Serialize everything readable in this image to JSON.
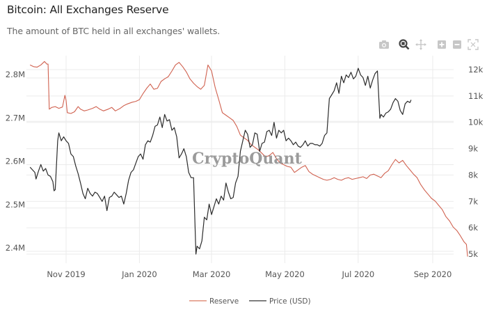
{
  "header": {
    "title": "Bitcoin: All Exchanges Reserve",
    "subtitle": "The amount of BTC held in all exchanges' wallets."
  },
  "toolbar": {
    "icons": [
      "camera-icon",
      "zoom-icon",
      "pan-icon",
      "zoom-in-icon",
      "zoom-out-icon",
      "autoscale-icon"
    ]
  },
  "watermark": "CryptoQuant",
  "colors": {
    "reserve": "#d0614f",
    "price": "#2b2b2b",
    "grid": "#ebebeb",
    "reserve_legend": "#e0907c",
    "price_legend": "#555555"
  },
  "chart_data": {
    "type": "line",
    "title": "Bitcoin: All Exchanges Reserve",
    "subtitle": "The amount of BTC held in all exchanges' wallets.",
    "x_unit": "days since 2019-10-01",
    "xlim": [
      1,
      365
    ],
    "x_ticks": [
      {
        "label": "Nov 2019",
        "day": 31
      },
      {
        "label": "Jan 2020",
        "day": 92
      },
      {
        "label": "Mar 2020",
        "day": 152
      },
      {
        "label": "May 2020",
        "day": 213
      },
      {
        "label": "Jul 2020",
        "day": 274
      },
      {
        "label": "Sep 2020",
        "day": 336
      }
    ],
    "y_left": {
      "label": "Reserve",
      "range": [
        2.37,
        2.87
      ],
      "ticks": [
        {
          "label": "2.4M",
          "value": 2.4
        },
        {
          "label": "2.5M",
          "value": 2.5
        },
        {
          "label": "2.6M",
          "value": 2.6
        },
        {
          "label": "2.7M",
          "value": 2.7
        },
        {
          "label": "2.8M",
          "value": 2.8
        }
      ]
    },
    "y_right": {
      "label": "Price (USD)",
      "range": [
        4800,
        12400
      ],
      "ticks": [
        {
          "label": "5k",
          "value": 5000
        },
        {
          "label": "6k",
          "value": 6000
        },
        {
          "label": "7k",
          "value": 7000
        },
        {
          "label": "8k",
          "value": 8000
        },
        {
          "label": "9k",
          "value": 9000
        },
        {
          "label": "10k",
          "value": 10000
        },
        {
          "label": "11k",
          "value": 11000
        },
        {
          "label": "12k",
          "value": 12000
        }
      ]
    },
    "legend": {
      "position": "bottom-center",
      "entries": [
        "Reserve",
        "Price (USD)"
      ]
    },
    "grid": true,
    "series": [
      {
        "name": "Reserve",
        "axis": "left",
        "unit": "M BTC",
        "points": [
          [
            1,
            2.822
          ],
          [
            4,
            2.818
          ],
          [
            7,
            2.817
          ],
          [
            10,
            2.822
          ],
          [
            13,
            2.83
          ],
          [
            15,
            2.824
          ],
          [
            16,
            2.824
          ],
          [
            17,
            2.72
          ],
          [
            19,
            2.724
          ],
          [
            22,
            2.726
          ],
          [
            25,
            2.722
          ],
          [
            28,
            2.725
          ],
          [
            30,
            2.752
          ],
          [
            31,
            2.74
          ],
          [
            32,
            2.712
          ],
          [
            35,
            2.71
          ],
          [
            38,
            2.714
          ],
          [
            41,
            2.726
          ],
          [
            43,
            2.72
          ],
          [
            46,
            2.716
          ],
          [
            49,
            2.718
          ],
          [
            53,
            2.722
          ],
          [
            56,
            2.726
          ],
          [
            59,
            2.72
          ],
          [
            62,
            2.716
          ],
          [
            66,
            2.72
          ],
          [
            69,
            2.724
          ],
          [
            72,
            2.716
          ],
          [
            76,
            2.722
          ],
          [
            79,
            2.728
          ],
          [
            82,
            2.732
          ],
          [
            86,
            2.736
          ],
          [
            89,
            2.738
          ],
          [
            92,
            2.742
          ],
          [
            95,
            2.756
          ],
          [
            98,
            2.768
          ],
          [
            101,
            2.778
          ],
          [
            104,
            2.766
          ],
          [
            107,
            2.768
          ],
          [
            110,
            2.784
          ],
          [
            113,
            2.79
          ],
          [
            116,
            2.795
          ],
          [
            119,
            2.808
          ],
          [
            122,
            2.822
          ],
          [
            125,
            2.828
          ],
          [
            128,
            2.818
          ],
          [
            131,
            2.806
          ],
          [
            134,
            2.79
          ],
          [
            137,
            2.78
          ],
          [
            140,
            2.772
          ],
          [
            143,
            2.766
          ],
          [
            146,
            2.775
          ],
          [
            149,
            2.822
          ],
          [
            152,
            2.808
          ],
          [
            155,
            2.77
          ],
          [
            158,
            2.742
          ],
          [
            161,
            2.712
          ],
          [
            164,
            2.706
          ],
          [
            167,
            2.7
          ],
          [
            170,
            2.694
          ],
          [
            173,
            2.68
          ],
          [
            176,
            2.66
          ],
          [
            179,
            2.654
          ],
          [
            182,
            2.648
          ],
          [
            185,
            2.638
          ],
          [
            188,
            2.632
          ],
          [
            191,
            2.626
          ],
          [
            194,
            2.618
          ],
          [
            197,
            2.61
          ],
          [
            200,
            2.613
          ],
          [
            203,
            2.62
          ],
          [
            206,
            2.606
          ],
          [
            209,
            2.596
          ],
          [
            212,
            2.592
          ],
          [
            215,
            2.588
          ],
          [
            218,
            2.586
          ],
          [
            221,
            2.574
          ],
          [
            224,
            2.58
          ],
          [
            227,
            2.586
          ],
          [
            230,
            2.59
          ],
          [
            233,
            2.576
          ],
          [
            236,
            2.57
          ],
          [
            239,
            2.566
          ],
          [
            242,
            2.562
          ],
          [
            245,
            2.558
          ],
          [
            248,
            2.556
          ],
          [
            251,
            2.558
          ],
          [
            254,
            2.562
          ],
          [
            257,
            2.558
          ],
          [
            260,
            2.556
          ],
          [
            263,
            2.56
          ],
          [
            266,
            2.562
          ],
          [
            269,
            2.558
          ],
          [
            272,
            2.56
          ],
          [
            275,
            2.562
          ],
          [
            278,
            2.564
          ],
          [
            281,
            2.56
          ],
          [
            284,
            2.568
          ],
          [
            287,
            2.57
          ],
          [
            290,
            2.566
          ],
          [
            293,
            2.562
          ],
          [
            296,
            2.572
          ],
          [
            299,
            2.578
          ],
          [
            302,
            2.592
          ],
          [
            305,
            2.604
          ],
          [
            308,
            2.596
          ],
          [
            311,
            2.602
          ],
          [
            314,
            2.59
          ],
          [
            317,
            2.58
          ],
          [
            320,
            2.57
          ],
          [
            323,
            2.562
          ],
          [
            326,
            2.546
          ],
          [
            329,
            2.534
          ],
          [
            332,
            2.524
          ],
          [
            335,
            2.514
          ],
          [
            338,
            2.508
          ],
          [
            341,
            2.498
          ],
          [
            344,
            2.488
          ],
          [
            347,
            2.472
          ],
          [
            350,
            2.462
          ],
          [
            353,
            2.448
          ],
          [
            356,
            2.44
          ],
          [
            359,
            2.428
          ],
          [
            362,
            2.414
          ],
          [
            364,
            2.408
          ],
          [
            365,
            2.38
          ]
        ]
      },
      {
        "name": "Price (USD)",
        "axis": "right",
        "unit": "USD",
        "points": [
          [
            1,
            8300
          ],
          [
            3,
            8200
          ],
          [
            5,
            8100
          ],
          [
            6,
            7850
          ],
          [
            8,
            8150
          ],
          [
            10,
            8400
          ],
          [
            12,
            8150
          ],
          [
            14,
            8250
          ],
          [
            16,
            8000
          ],
          [
            18,
            7950
          ],
          [
            20,
            7750
          ],
          [
            21,
            7400
          ],
          [
            22,
            7450
          ],
          [
            24,
            9300
          ],
          [
            25,
            9600
          ],
          [
            27,
            9300
          ],
          [
            29,
            9450
          ],
          [
            31,
            9300
          ],
          [
            33,
            9200
          ],
          [
            35,
            8800
          ],
          [
            37,
            8700
          ],
          [
            39,
            8350
          ],
          [
            41,
            8050
          ],
          [
            43,
            7700
          ],
          [
            45,
            7300
          ],
          [
            47,
            7100
          ],
          [
            49,
            7500
          ],
          [
            51,
            7300
          ],
          [
            53,
            7200
          ],
          [
            55,
            7350
          ],
          [
            57,
            7300
          ],
          [
            59,
            7150
          ],
          [
            61,
            7000
          ],
          [
            63,
            7200
          ],
          [
            65,
            6650
          ],
          [
            67,
            7150
          ],
          [
            69,
            7200
          ],
          [
            71,
            7350
          ],
          [
            73,
            7250
          ],
          [
            75,
            7150
          ],
          [
            77,
            7200
          ],
          [
            79,
            6900
          ],
          [
            81,
            7300
          ],
          [
            83,
            7800
          ],
          [
            85,
            8100
          ],
          [
            87,
            8200
          ],
          [
            89,
            8450
          ],
          [
            91,
            8700
          ],
          [
            93,
            8800
          ],
          [
            95,
            8600
          ],
          [
            97,
            9150
          ],
          [
            99,
            9300
          ],
          [
            101,
            9250
          ],
          [
            103,
            9500
          ],
          [
            105,
            9850
          ],
          [
            107,
            9900
          ],
          [
            109,
            10200
          ],
          [
            111,
            9800
          ],
          [
            113,
            10300
          ],
          [
            115,
            10050
          ],
          [
            117,
            10100
          ],
          [
            119,
            9700
          ],
          [
            121,
            9800
          ],
          [
            123,
            9450
          ],
          [
            125,
            8650
          ],
          [
            127,
            8800
          ],
          [
            129,
            9000
          ],
          [
            131,
            8700
          ],
          [
            133,
            8100
          ],
          [
            135,
            7900
          ],
          [
            137,
            7900
          ],
          [
            139,
            5000
          ],
          [
            140,
            5300
          ],
          [
            142,
            5200
          ],
          [
            144,
            5500
          ],
          [
            146,
            6400
          ],
          [
            148,
            6300
          ],
          [
            150,
            6900
          ],
          [
            152,
            6500
          ],
          [
            154,
            6800
          ],
          [
            156,
            7100
          ],
          [
            158,
            6900
          ],
          [
            160,
            7200
          ],
          [
            162,
            7050
          ],
          [
            164,
            7700
          ],
          [
            166,
            7350
          ],
          [
            168,
            7100
          ],
          [
            170,
            7150
          ],
          [
            172,
            7700
          ],
          [
            174,
            7950
          ],
          [
            176,
            8900
          ],
          [
            178,
            9300
          ],
          [
            180,
            9700
          ],
          [
            182,
            9550
          ],
          [
            184,
            9050
          ],
          [
            186,
            9150
          ],
          [
            188,
            9600
          ],
          [
            190,
            9550
          ],
          [
            192,
            8900
          ],
          [
            194,
            9200
          ],
          [
            196,
            9250
          ],
          [
            198,
            9650
          ],
          [
            200,
            9700
          ],
          [
            202,
            9500
          ],
          [
            204,
            10000
          ],
          [
            206,
            9400
          ],
          [
            208,
            9700
          ],
          [
            210,
            9600
          ],
          [
            212,
            9700
          ],
          [
            214,
            9300
          ],
          [
            216,
            9400
          ],
          [
            218,
            9300
          ],
          [
            220,
            9150
          ],
          [
            222,
            9250
          ],
          [
            224,
            9100
          ],
          [
            226,
            9050
          ],
          [
            228,
            9150
          ],
          [
            230,
            9300
          ],
          [
            232,
            9100
          ],
          [
            234,
            9200
          ],
          [
            236,
            9200
          ],
          [
            238,
            9150
          ],
          [
            240,
            9150
          ],
          [
            242,
            9100
          ],
          [
            244,
            9200
          ],
          [
            246,
            9500
          ],
          [
            248,
            9600
          ],
          [
            250,
            10900
          ],
          [
            252,
            11050
          ],
          [
            254,
            11200
          ],
          [
            256,
            11500
          ],
          [
            258,
            11100
          ],
          [
            260,
            11750
          ],
          [
            262,
            11500
          ],
          [
            264,
            11800
          ],
          [
            266,
            11700
          ],
          [
            268,
            11900
          ],
          [
            270,
            11650
          ],
          [
            272,
            11750
          ],
          [
            274,
            12050
          ],
          [
            276,
            11800
          ],
          [
            278,
            11700
          ],
          [
            280,
            11400
          ],
          [
            282,
            11750
          ],
          [
            284,
            11300
          ],
          [
            286,
            11600
          ],
          [
            288,
            11850
          ],
          [
            290,
            11950
          ],
          [
            292,
            10150
          ],
          [
            293,
            10300
          ],
          [
            295,
            10200
          ],
          [
            297,
            10350
          ],
          [
            299,
            10400
          ],
          [
            301,
            10500
          ],
          [
            303,
            10750
          ],
          [
            305,
            10900
          ],
          [
            307,
            10800
          ],
          [
            309,
            10450
          ],
          [
            311,
            10300
          ],
          [
            313,
            10700
          ],
          [
            315,
            10800
          ],
          [
            317,
            10750
          ],
          [
            318,
            10850
          ]
        ]
      }
    ]
  }
}
